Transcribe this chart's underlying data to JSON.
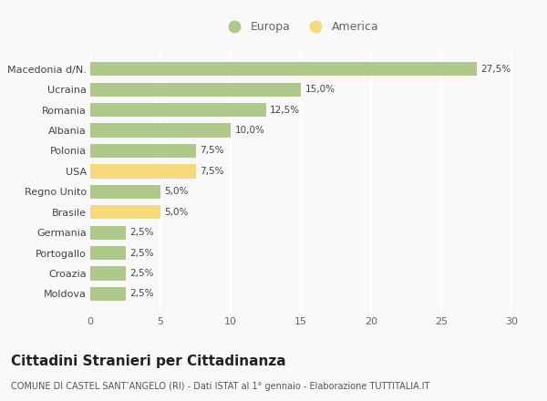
{
  "categories": [
    "Macedonia d/N.",
    "Ucraina",
    "Romania",
    "Albania",
    "Polonia",
    "USA",
    "Regno Unito",
    "Brasile",
    "Germania",
    "Portogallo",
    "Croazia",
    "Moldova"
  ],
  "values": [
    27.5,
    15.0,
    12.5,
    10.0,
    7.5,
    7.5,
    5.0,
    5.0,
    2.5,
    2.5,
    2.5,
    2.5
  ],
  "colors": [
    "#aec98a",
    "#aec98a",
    "#aec98a",
    "#aec98a",
    "#aec98a",
    "#f5d97a",
    "#aec98a",
    "#f5d97a",
    "#aec98a",
    "#aec98a",
    "#aec98a",
    "#aec98a"
  ],
  "europa_color": "#aec98a",
  "america_color": "#f5d97a",
  "title": "Cittadini Stranieri per Cittadinanza",
  "subtitle": "COMUNE DI CASTEL SANT’ANGELO (RI) - Dati ISTAT al 1° gennaio - Elaborazione TUTTITALIA.IT",
  "xlim": [
    0,
    30
  ],
  "xticks": [
    0,
    5,
    10,
    15,
    20,
    25,
    30
  ],
  "background_color": "#f9f9f9",
  "grid_color": "#ffffff",
  "bar_label_fontsize": 7.5,
  "ylabel_fontsize": 8,
  "xlabel_fontsize": 8,
  "title_fontsize": 11,
  "subtitle_fontsize": 7,
  "legend_fontsize": 9,
  "bar_height": 0.68
}
